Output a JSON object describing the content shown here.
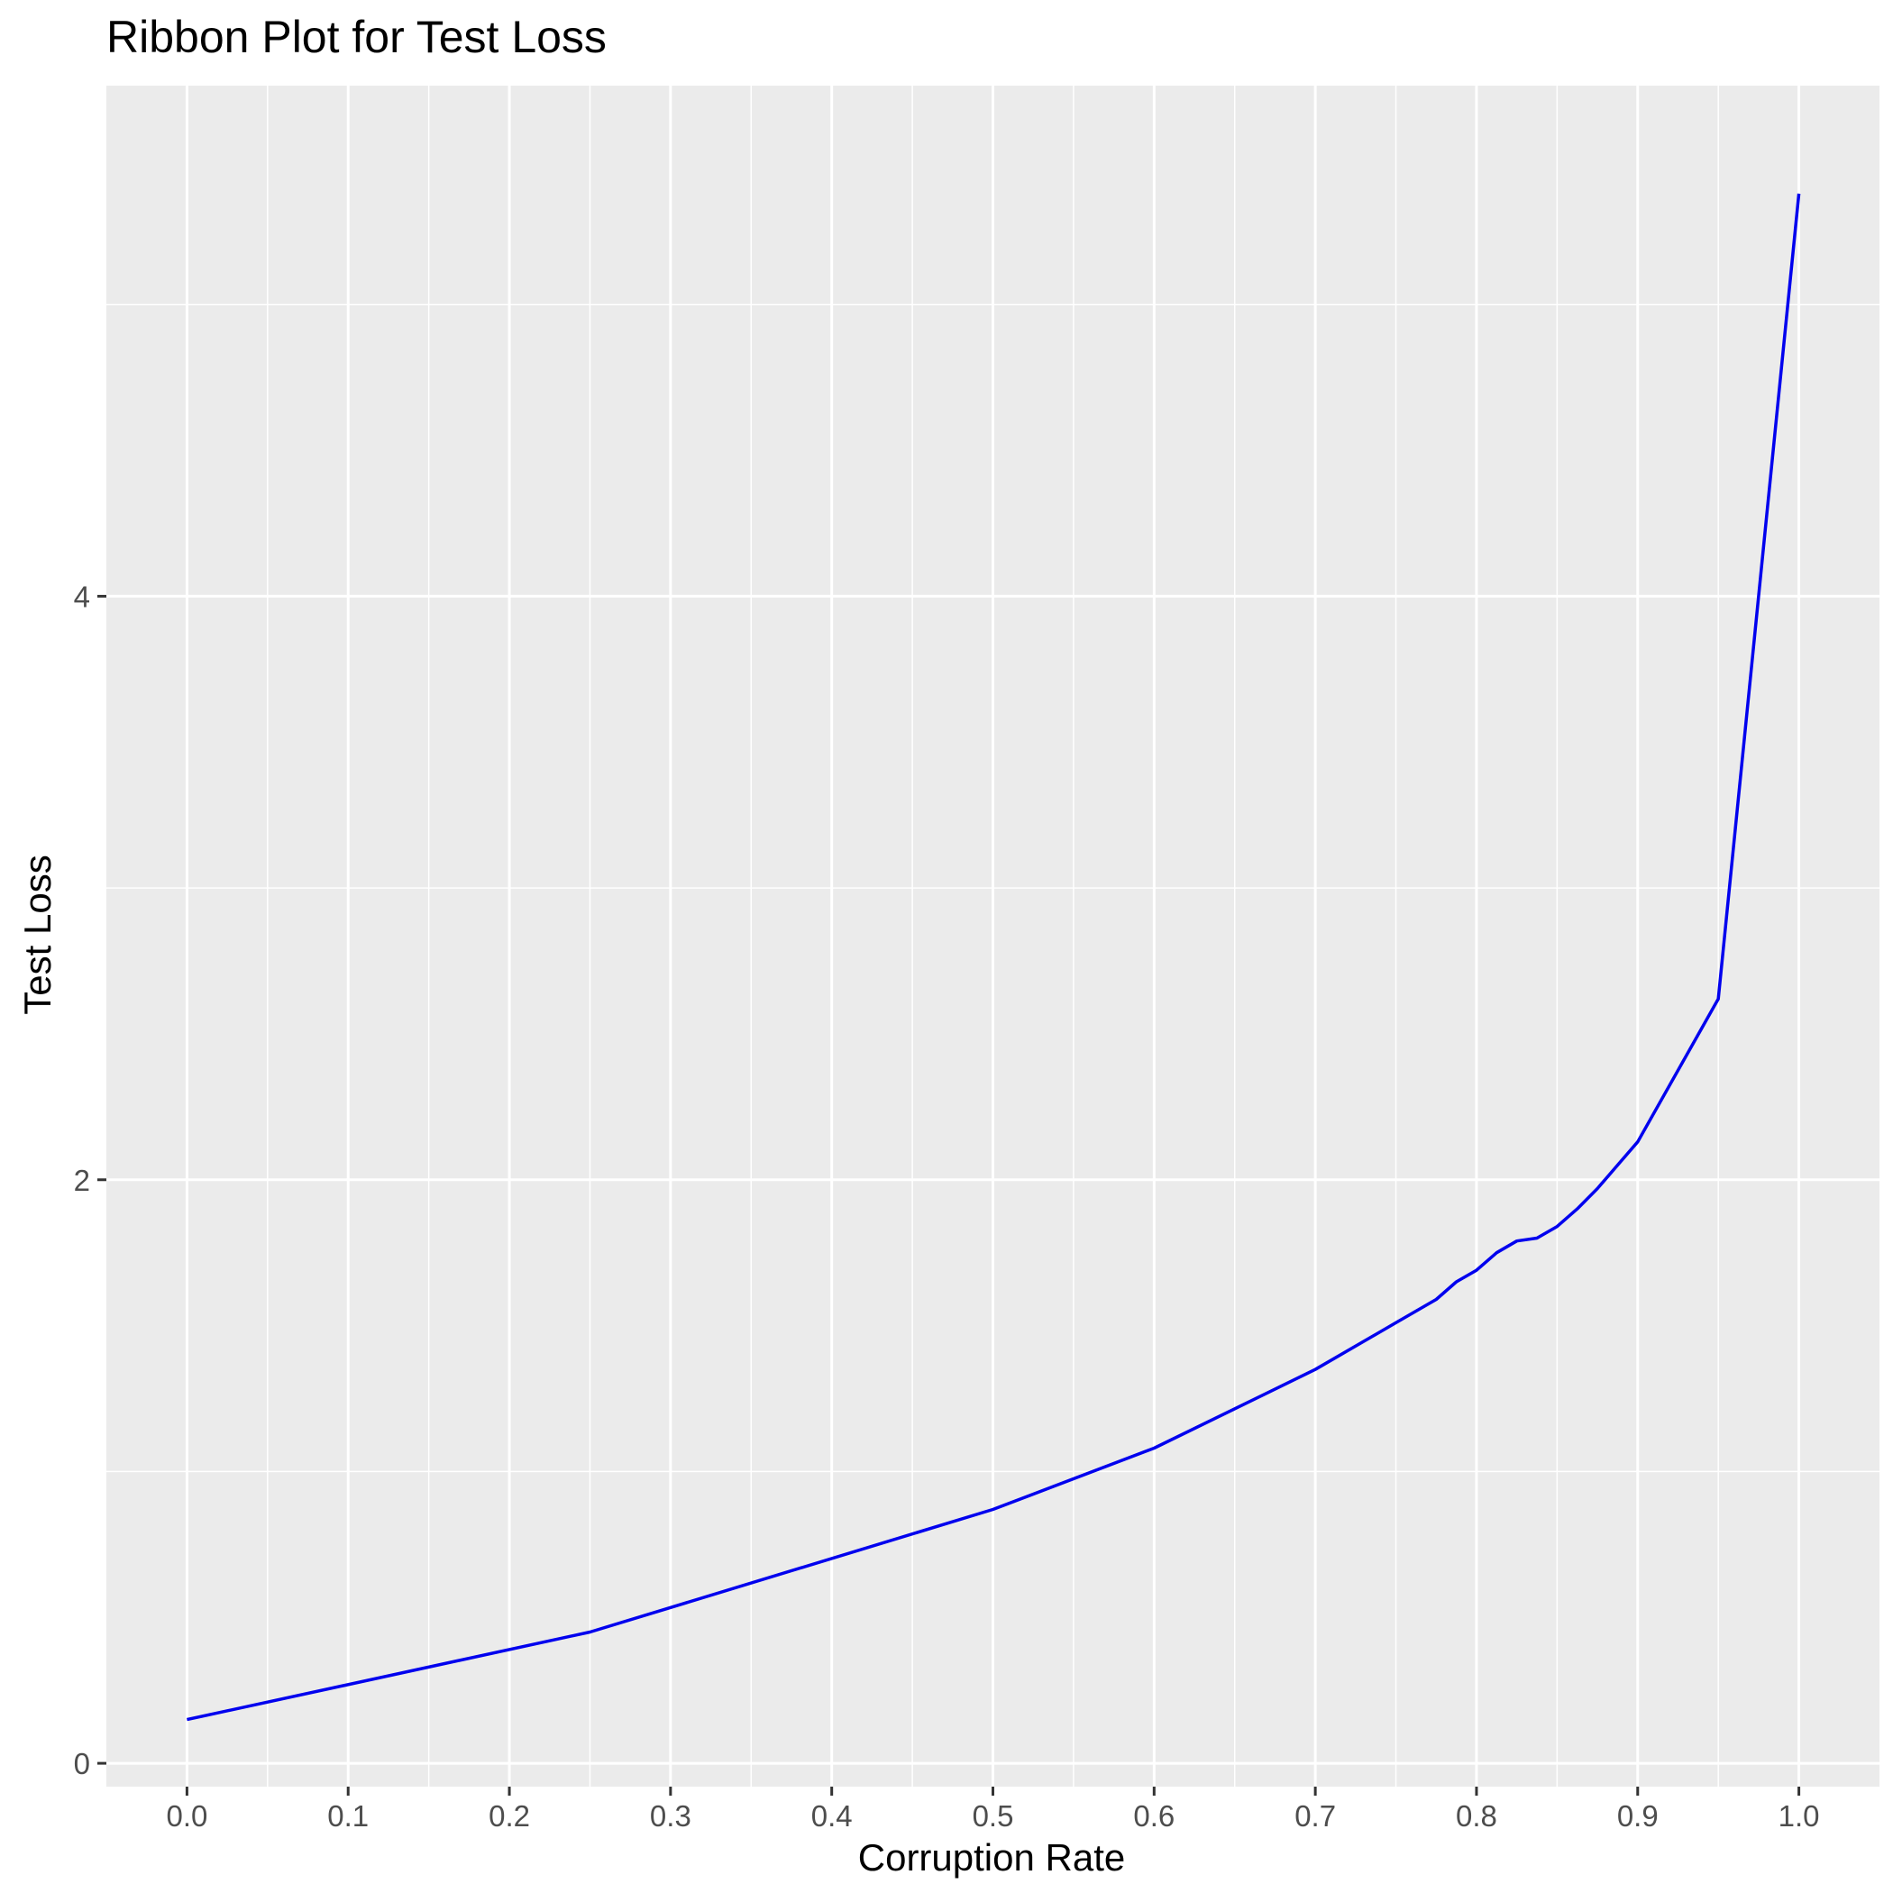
{
  "chart_data": {
    "type": "line",
    "title": "Ribbon Plot for  Test Loss",
    "xlabel": "Corruption Rate",
    "ylabel": "Test Loss",
    "xlim": [
      -0.05,
      1.05
    ],
    "ylim": [
      -0.08,
      5.75
    ],
    "x_ticks": [
      0.0,
      0.1,
      0.2,
      0.3,
      0.4,
      0.5,
      0.6,
      0.7,
      0.8,
      0.9,
      1.0
    ],
    "x_tick_labels": [
      "0.0",
      "0.1",
      "0.2",
      "0.3",
      "0.4",
      "0.5",
      "0.6",
      "0.7",
      "0.8",
      "0.9",
      "1.0"
    ],
    "x_minor_ticks": [
      0.05,
      0.15,
      0.25,
      0.35,
      0.45,
      0.55,
      0.65,
      0.75,
      0.85,
      0.95
    ],
    "y_ticks": [
      0,
      2,
      4
    ],
    "y_tick_labels": [
      "0",
      "2",
      "4"
    ],
    "y_minor_ticks": [
      1,
      3,
      5
    ],
    "grid": true,
    "background": "#ebebeb",
    "grid_color": "#ffffff",
    "line_color": "#0000ee",
    "series": [
      {
        "x": [
          0.0,
          0.25,
          0.5,
          0.6,
          0.7,
          0.75,
          0.775,
          0.7875,
          0.8,
          0.8125,
          0.825,
          0.8375,
          0.85,
          0.8625,
          0.875,
          0.8875,
          0.9,
          0.95,
          1.0
        ],
        "y": [
          0.15,
          0.45,
          0.87,
          1.08,
          1.35,
          1.51,
          1.59,
          1.65,
          1.69,
          1.75,
          1.79,
          1.8,
          1.84,
          1.9,
          1.97,
          2.05,
          2.13,
          2.62,
          5.38
        ]
      }
    ]
  }
}
